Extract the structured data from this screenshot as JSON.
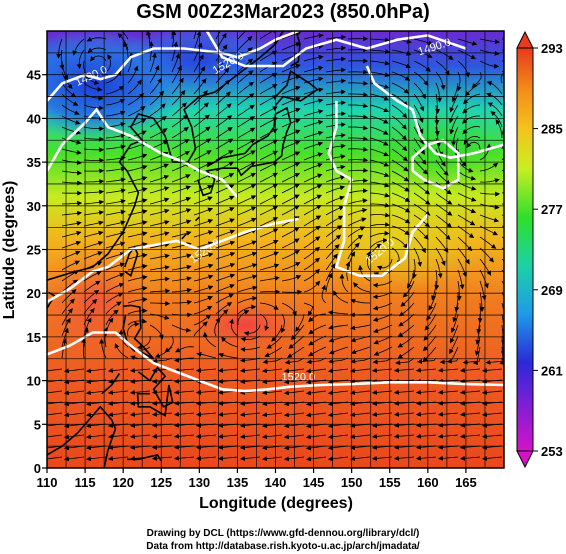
{
  "title": "GSM 00Z23Mar2023 (850.0hPa)",
  "x_axis": {
    "label": "Longitude (degrees)",
    "ticks": [
      "110",
      "115",
      "120",
      "125",
      "130",
      "135",
      "140",
      "145",
      "150",
      "155",
      "160",
      "165"
    ]
  },
  "y_axis": {
    "label": "Latitude  (degrees)",
    "ticks": [
      "0",
      "5",
      "10",
      "15",
      "20",
      "25",
      "30",
      "35",
      "40",
      "45"
    ]
  },
  "colorbar": {
    "ticks": [
      "253",
      "261",
      "269",
      "277",
      "285",
      "293"
    ],
    "min": 253,
    "max": 293,
    "colors": [
      "#d413c8",
      "#3b1fd6",
      "#1f9ae8",
      "#1bd1a6",
      "#2fe02a",
      "#c8ee22",
      "#f5c21c",
      "#f38a18",
      "#ef5426",
      "#e23f1c"
    ]
  },
  "contour_labels": [
    "1490.0",
    "1490.0",
    "1520.0",
    "1520.0",
    "1520.0",
    "1520.0"
  ],
  "footer": {
    "line1": "Drawing by DCL (https://www.gfd-dennou.org/library/dcl/)",
    "line2": "Data from http://database.rish.kyoto-u.ac.jp/arch/jmadata/"
  }
}
